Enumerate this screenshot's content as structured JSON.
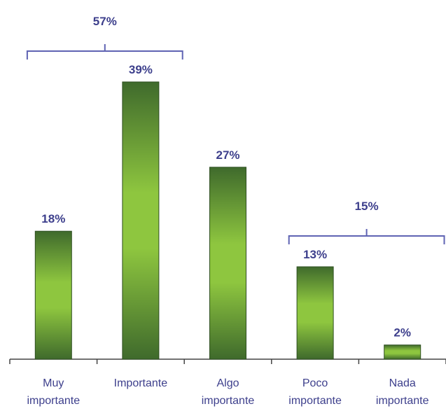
{
  "chart_data": {
    "type": "bar",
    "categories": [
      [
        "Muy",
        "importante"
      ],
      [
        "Importante"
      ],
      [
        "Algo",
        "importante"
      ],
      [
        "Poco",
        "importante"
      ],
      [
        "Nada",
        "importante"
      ]
    ],
    "values": [
      18,
      39,
      27,
      13,
      2
    ],
    "value_labels": [
      "18%",
      "39%",
      "27%",
      "13%",
      "2%"
    ],
    "ylim": [
      0,
      39
    ],
    "grid": false,
    "legend": "none",
    "colors": {
      "bar_dark": "#3f6a2c",
      "bar_light": "#8ec63f",
      "text": "#3d3f8c",
      "bracket": "#5f63b3",
      "axis": "#444444"
    },
    "groups": [
      {
        "label": "57%",
        "from": 0,
        "to": 1
      },
      {
        "label": "15%",
        "from": 3,
        "to": 4
      }
    ]
  }
}
